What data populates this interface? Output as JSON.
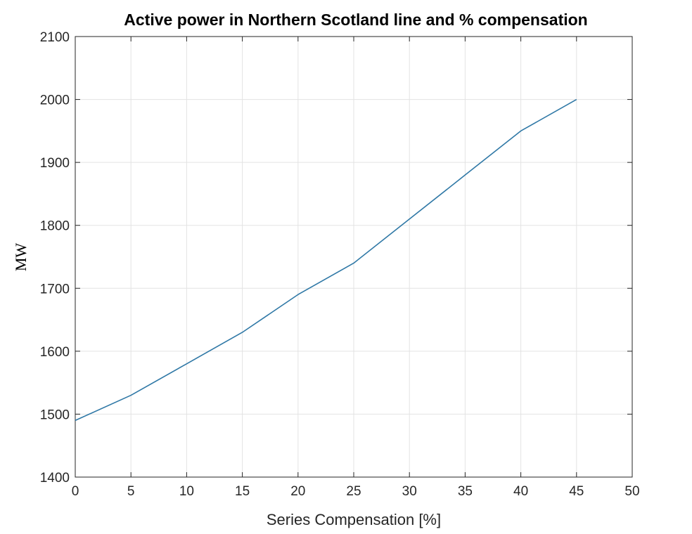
{
  "chart_data": {
    "type": "line",
    "title": "Active power in Northern Scotland line and % compensation",
    "xlabel": "Series Compensation [%]",
    "ylabel": "MW",
    "xlim": [
      0,
      50
    ],
    "ylim": [
      1400,
      2100
    ],
    "xticks": [
      0,
      5,
      10,
      15,
      20,
      25,
      30,
      35,
      40,
      45,
      50
    ],
    "yticks": [
      1400,
      1500,
      1600,
      1700,
      1800,
      1900,
      2000,
      2100
    ],
    "grid": true,
    "series": [
      {
        "x": [
          0,
          5,
          10,
          15,
          20,
          25,
          30,
          35,
          40,
          45
        ],
        "y": [
          1490,
          1530,
          1580,
          1630,
          1690,
          1740,
          1810,
          1880,
          1950,
          2000
        ],
        "color": "#2f78a6"
      }
    ]
  }
}
